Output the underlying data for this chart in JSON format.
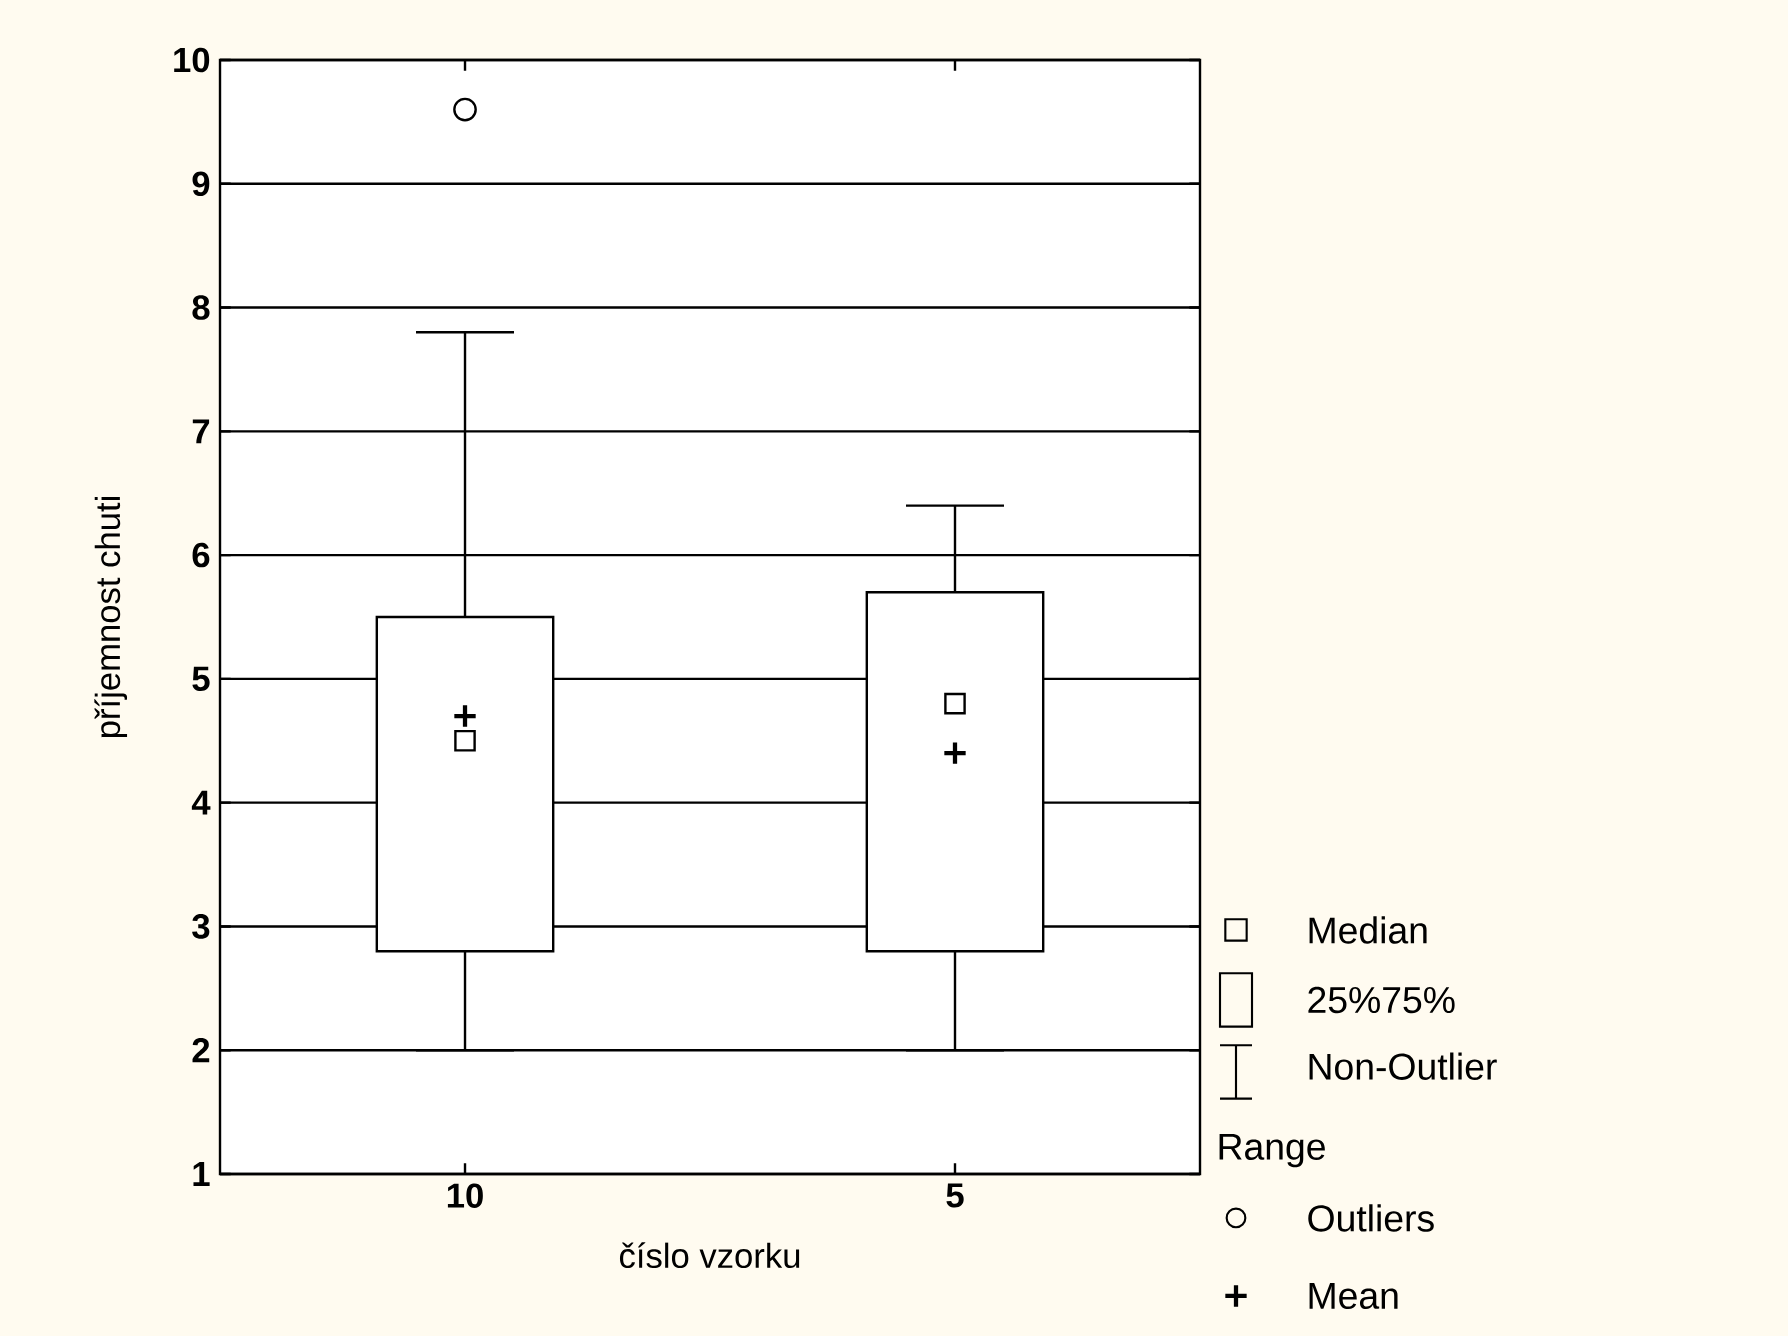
{
  "chart_data": {
    "type": "box",
    "xlabel": "číslo vzorku",
    "ylabel": "příjemnost chuti",
    "categories": [
      "10",
      "5"
    ],
    "boxes": [
      {
        "low": 2,
        "q1": 2.8,
        "median": 4.5,
        "q3": 5.5,
        "high": 7.8,
        "mean": 4.7,
        "outliers": [
          9.6
        ]
      },
      {
        "low": 2,
        "q1": 2.8,
        "median": 4.8,
        "q3": 5.7,
        "high": 6.4,
        "mean": 4.4
      }
    ],
    "ylim": [
      1,
      10
    ],
    "yticks": [
      1,
      2,
      3,
      4,
      5,
      6,
      7,
      8,
      9,
      10
    ],
    "grid": "y",
    "annotations": [
      "Median",
      "25%75%",
      "Non-Outlier Range",
      "Outliers",
      "Mean"
    ]
  }
}
